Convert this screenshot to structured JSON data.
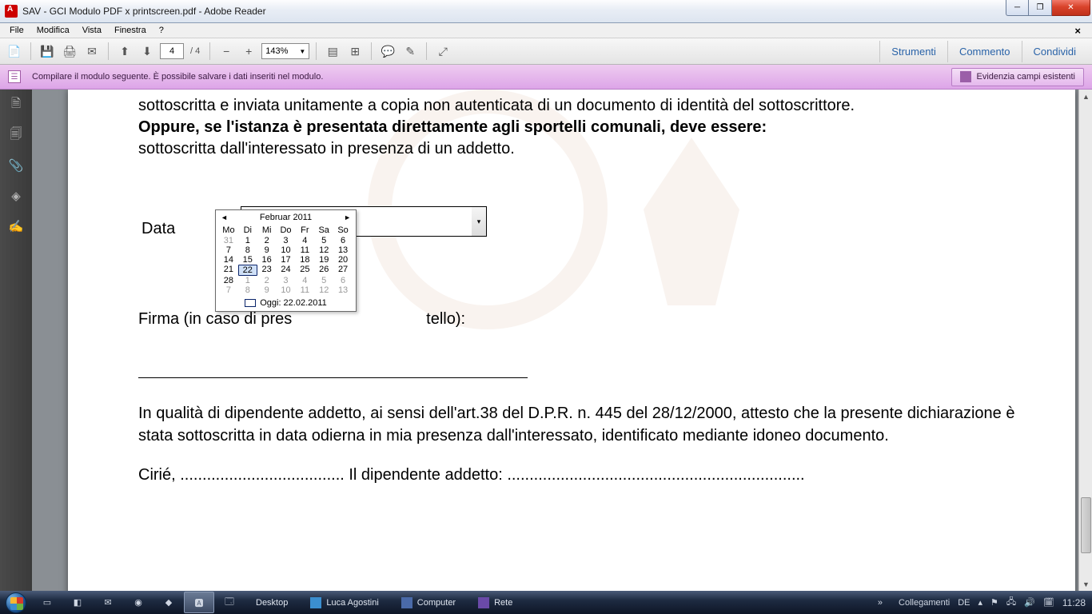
{
  "window": {
    "title": "SAV - GCI Modulo PDF x printscreen.pdf - Adobe Reader"
  },
  "menu": [
    "File",
    "Modifica",
    "Vista",
    "Finestra",
    "?"
  ],
  "toolbar": {
    "page_current": "4",
    "page_total": "/ 4",
    "zoom": "143%",
    "links": [
      "Strumenti",
      "Commento",
      "Condividi"
    ]
  },
  "formbar": {
    "text": "Compilare il modulo seguente. È possibile salvare i dati inseriti nel modulo.",
    "highlight": "Evidenzia campi esistenti"
  },
  "doc": {
    "line1": "sottoscritta e inviata unitamente a copia non autenticata di un documento di identità del sottoscrittore.",
    "line2": "Oppure, se l'istanza è presentata direttamente agli sportelli comunali, deve essere:",
    "line3": "sottoscritta dall'interessato in presenza di un addetto.",
    "data_label": "Data",
    "firma_before": "Firma (in caso di pres",
    "firma_after": "tello):",
    "attest": "In qualità di dipendente addetto, ai sensi dell'art.38 del D.P.R. n. 445 del 28/12/2000, attesto che la presente dichiarazione è stata sottoscritta in data odierna in mia presenza dall'interessato, identificato mediante idoneo documento.",
    "cirie": "Cirié, .....................................  Il dipendente addetto: ..................................................................."
  },
  "calendar": {
    "title": "Februar 2011",
    "dayheaders": [
      "Mo",
      "Di",
      "Mi",
      "Do",
      "Fr",
      "Sa",
      "So"
    ],
    "weeks": [
      [
        {
          "n": "31",
          "o": true
        },
        {
          "n": "1"
        },
        {
          "n": "2"
        },
        {
          "n": "3"
        },
        {
          "n": "4"
        },
        {
          "n": "5"
        },
        {
          "n": "6"
        }
      ],
      [
        {
          "n": "7"
        },
        {
          "n": "8"
        },
        {
          "n": "9"
        },
        {
          "n": "10"
        },
        {
          "n": "11"
        },
        {
          "n": "12"
        },
        {
          "n": "13"
        }
      ],
      [
        {
          "n": "14"
        },
        {
          "n": "15"
        },
        {
          "n": "16"
        },
        {
          "n": "17"
        },
        {
          "n": "18"
        },
        {
          "n": "19"
        },
        {
          "n": "20"
        }
      ],
      [
        {
          "n": "21"
        },
        {
          "n": "22",
          "t": true
        },
        {
          "n": "23"
        },
        {
          "n": "24"
        },
        {
          "n": "25"
        },
        {
          "n": "26"
        },
        {
          "n": "27"
        }
      ],
      [
        {
          "n": "28"
        },
        {
          "n": "1",
          "o": true
        },
        {
          "n": "2",
          "o": true
        },
        {
          "n": "3",
          "o": true
        },
        {
          "n": "4",
          "o": true
        },
        {
          "n": "5",
          "o": true
        },
        {
          "n": "6",
          "o": true
        }
      ],
      [
        {
          "n": "7",
          "o": true
        },
        {
          "n": "8",
          "o": true
        },
        {
          "n": "9",
          "o": true
        },
        {
          "n": "10",
          "o": true
        },
        {
          "n": "11",
          "o": true
        },
        {
          "n": "12",
          "o": true
        },
        {
          "n": "13",
          "o": true
        }
      ]
    ],
    "footer": "Oggi: 22.02.2011"
  },
  "taskbar": {
    "links": [
      {
        "label": "Desktop"
      },
      {
        "label": "Luca Agostini"
      },
      {
        "label": "Computer"
      },
      {
        "label": "Rete"
      }
    ],
    "collegamenti": "Collegamenti",
    "lang": "DE",
    "time": "11:28"
  }
}
